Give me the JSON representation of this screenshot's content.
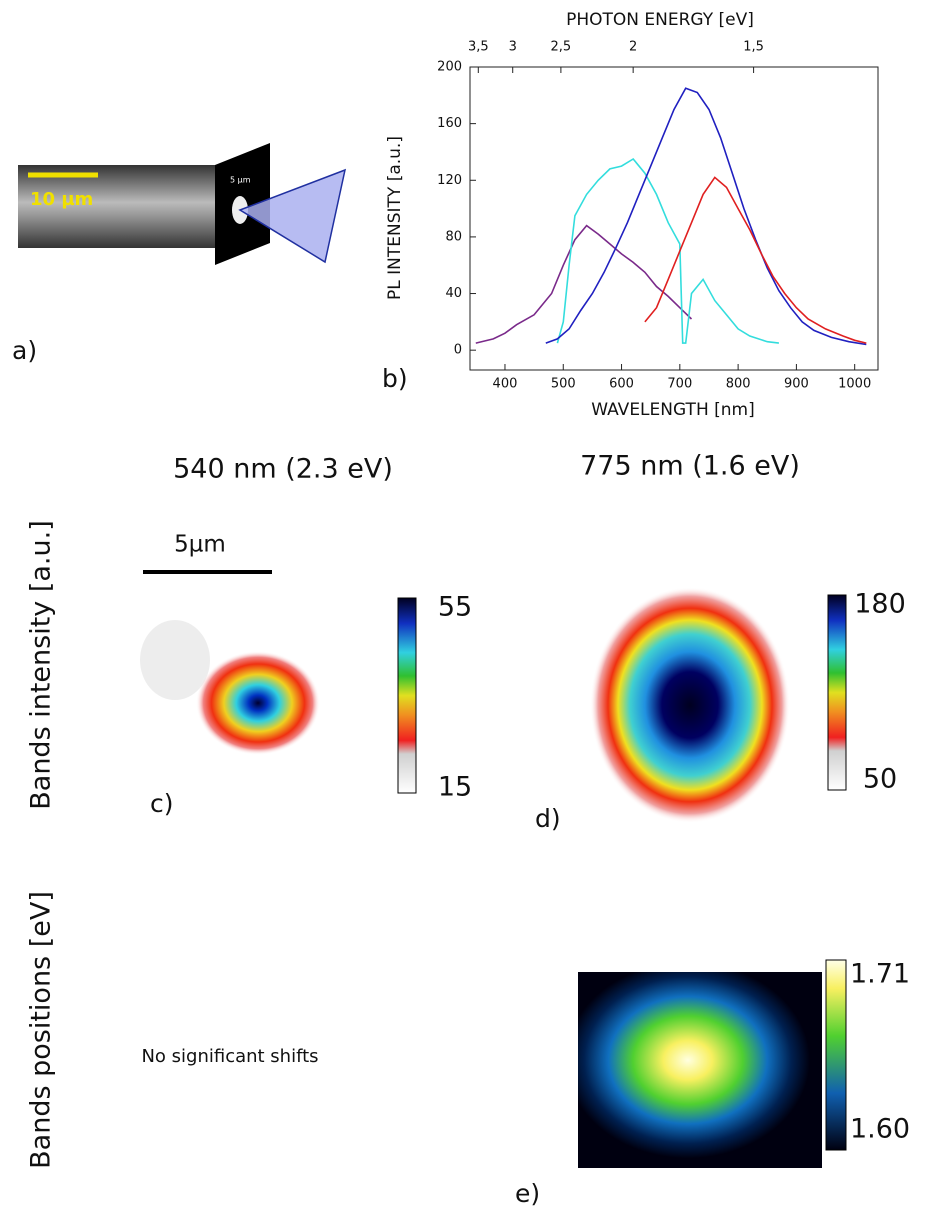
{
  "panel_a": {
    "label": "a)",
    "scale_bar": "10 µm",
    "inset_scale": "5 µm"
  },
  "chart_data": {
    "type": "line",
    "panel_label": "b)",
    "x_label": "WAVELENGTH [nm]",
    "y_label": "PL INTENSITY [a.u.]",
    "x2_label": "PHOTON ENERGY [eV]",
    "xlim": [
      340,
      1040
    ],
    "xticks": [
      400,
      500,
      600,
      700,
      800,
      900,
      1000
    ],
    "ylim": [
      -14,
      200
    ],
    "yticks": [
      0,
      40,
      80,
      120,
      160,
      200
    ],
    "x2ticks": [
      {
        "value": 3.5,
        "label": "3,5"
      },
      3,
      {
        "value": 2.5,
        "label": "2,5"
      },
      2,
      {
        "value": 1.5,
        "label": "1,5"
      }
    ],
    "series": [
      {
        "color": "#7a2a8a",
        "x": [
          350,
          380,
          400,
          420,
          450,
          480,
          500,
          520,
          540,
          560,
          580,
          600,
          620,
          640,
          660,
          680,
          700,
          720
        ],
        "values": [
          5,
          8,
          12,
          18,
          25,
          40,
          60,
          78,
          88,
          82,
          75,
          68,
          62,
          55,
          45,
          38,
          30,
          22
        ]
      },
      {
        "color": "#33dddd",
        "x": [
          490,
          500,
          510,
          520,
          540,
          560,
          580,
          600,
          620,
          640,
          660,
          680,
          700,
          705,
          710,
          720,
          740,
          760,
          780,
          800,
          820,
          850,
          870
        ],
        "values": [
          5,
          20,
          60,
          95,
          110,
          120,
          128,
          130,
          135,
          125,
          110,
          90,
          75,
          5,
          5,
          40,
          50,
          35,
          25,
          15,
          10,
          6,
          5
        ]
      },
      {
        "color": "#2020c0",
        "x": [
          470,
          490,
          510,
          530,
          550,
          570,
          590,
          610,
          630,
          650,
          670,
          690,
          710,
          730,
          750,
          770,
          790,
          810,
          830,
          850,
          870,
          890,
          910,
          930,
          960,
          990,
          1020
        ],
        "values": [
          5,
          8,
          15,
          28,
          40,
          55,
          72,
          90,
          110,
          130,
          150,
          170,
          185,
          182,
          170,
          150,
          125,
          100,
          78,
          58,
          42,
          30,
          20,
          14,
          9,
          6,
          4
        ]
      },
      {
        "color": "#e02020",
        "x": [
          640,
          660,
          680,
          700,
          720,
          740,
          760,
          780,
          800,
          820,
          840,
          860,
          880,
          900,
          920,
          950,
          980,
          1000,
          1020
        ],
        "values": [
          20,
          30,
          50,
          70,
          90,
          110,
          122,
          115,
          100,
          85,
          68,
          52,
          40,
          30,
          22,
          15,
          10,
          7,
          5
        ]
      }
    ]
  },
  "maps": {
    "title_left": "540 nm (2.3 eV)",
    "title_right": "775 nm (1.6 eV)",
    "row_intensity": "Bands intensity [a.u.]",
    "row_positions": "Bands positions [eV]",
    "scale_bar": "5µm",
    "note": "No significant shifts",
    "panels": [
      {
        "label": "c)",
        "max": 55,
        "min": 15
      },
      {
        "label": "d)",
        "max": 180,
        "min": 50
      },
      {
        "label": "e)",
        "max": 1.71,
        "min": {
          "value": 1.6,
          "label": "1.60"
        }
      }
    ]
  }
}
